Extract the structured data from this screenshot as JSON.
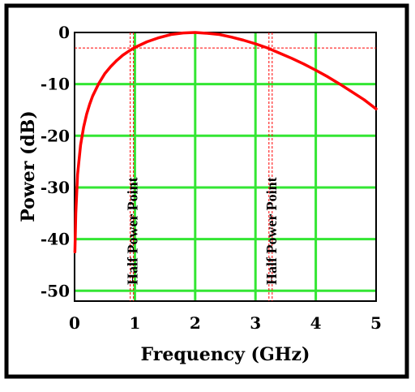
{
  "chart_data": {
    "type": "line",
    "title": "",
    "xlabel": "Frequency (GHz)",
    "ylabel": "Power (dB)",
    "xlim": [
      0,
      5
    ],
    "ylim": [
      -52,
      0
    ],
    "x_ticks": [
      "0",
      "1",
      "2",
      "3",
      "4",
      "5"
    ],
    "y_ticks": [
      "0",
      "-10",
      "-20",
      "-30",
      "-40",
      "-50"
    ],
    "x_tick_values": [
      0,
      1,
      2,
      3,
      4,
      5
    ],
    "y_tick_values": [
      0,
      -10,
      -20,
      -30,
      -40,
      -50
    ],
    "grid": true,
    "grid_color": "#33e633",
    "series": [
      {
        "color": "#ff0000",
        "x": [
          0.005,
          0.02,
          0.05,
          0.1,
          0.15,
          0.2,
          0.25,
          0.3,
          0.4,
          0.5,
          0.6,
          0.7,
          0.8,
          0.9,
          1.0,
          1.2,
          1.4,
          1.6,
          1.8,
          2.0,
          2.2,
          2.4,
          2.6,
          2.8,
          3.0,
          3.2,
          3.4,
          3.6,
          3.8,
          4.0,
          4.2,
          4.4,
          4.6,
          4.8,
          5.0
        ],
        "y": [
          -42.5,
          -35,
          -27.5,
          -21.8,
          -18.3,
          -15.8,
          -13.9,
          -12.3,
          -9.9,
          -8.0,
          -6.6,
          -5.4,
          -4.4,
          -3.6,
          -2.9,
          -1.8,
          -1.0,
          -0.4,
          -0.1,
          0,
          -0.15,
          -0.4,
          -0.9,
          -1.5,
          -2.2,
          -3.0,
          -4.0,
          -5.0,
          -6.1,
          -7.3,
          -8.6,
          -10.0,
          -11.5,
          -13.0,
          -14.8
        ]
      }
    ],
    "half_power_level": -3,
    "half_power_points": [
      {
        "x": 0.95,
        "label": "Half Power Point"
      },
      {
        "x": 3.25,
        "label": "Half Power Point"
      }
    ],
    "reference_line_color": "#ff0000"
  }
}
